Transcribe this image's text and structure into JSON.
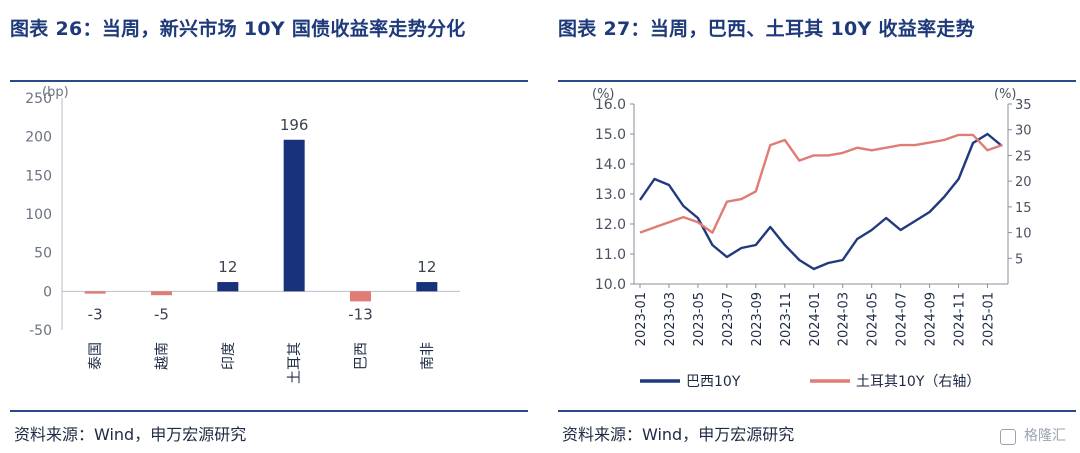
{
  "left": {
    "title": "图表 26：当周，新兴市场 10Y 国债收益率走势分化",
    "source": "资料来源：Wind，申万宏源研究"
  },
  "right": {
    "title": "图表 27：当周，巴西、土耳其 10Y 收益率走势",
    "source": "资料来源：Wind，申万宏源研究"
  },
  "watermark": "格隆汇",
  "chart_data": [
    {
      "type": "bar",
      "ylabel": "(bp)",
      "ylim": [
        -50,
        250
      ],
      "yticks": [
        -50,
        0,
        50,
        100,
        150,
        200,
        250
      ],
      "categories": [
        "泰国",
        "越南",
        "印度",
        "土耳其",
        "巴西",
        "南非"
      ],
      "values": [
        -3,
        -5,
        12,
        196,
        -13,
        12
      ],
      "data_labels": [
        "-3",
        "-5",
        "12",
        "196",
        "-13",
        "12"
      ],
      "colors": {
        "positive": "#17317a",
        "negative": "#e07b75"
      },
      "grid": false
    },
    {
      "type": "line",
      "ylabel_left": "(%)",
      "ylabel_right": "(%)",
      "ylim_left": [
        10.0,
        16.0
      ],
      "yticks_left": [
        "10.0",
        "11.0",
        "12.0",
        "13.0",
        "14.0",
        "15.0",
        "16.0"
      ],
      "ylim_right": [
        0,
        35
      ],
      "yticks_right": [
        "5",
        "10",
        "15",
        "20",
        "25",
        "30",
        "35"
      ],
      "x_ticks": [
        "2023-01",
        "2023-03",
        "2023-05",
        "2023-07",
        "2023-09",
        "2023-11",
        "2024-01",
        "2024-03",
        "2024-05",
        "2024-07",
        "2024-09",
        "2024-11",
        "2025-01"
      ],
      "series": [
        {
          "name": "巴西10Y",
          "axis": "left",
          "color": "#1f3a7d",
          "x": [
            "2023-01",
            "2023-02",
            "2023-03",
            "2023-04",
            "2023-05",
            "2023-06",
            "2023-07",
            "2023-08",
            "2023-09",
            "2023-10",
            "2023-11",
            "2023-12",
            "2024-01",
            "2024-02",
            "2024-03",
            "2024-04",
            "2024-05",
            "2024-06",
            "2024-07",
            "2024-08",
            "2024-09",
            "2024-10",
            "2024-11",
            "2024-12",
            "2025-01",
            "2025-02"
          ],
          "values": [
            12.8,
            13.5,
            13.3,
            12.6,
            12.2,
            11.3,
            10.9,
            11.2,
            11.3,
            11.9,
            11.3,
            10.8,
            10.5,
            10.7,
            10.8,
            11.5,
            11.8,
            12.2,
            11.8,
            12.1,
            12.4,
            12.9,
            13.5,
            14.7,
            15.0,
            14.6
          ]
        },
        {
          "name": "土耳其10Y（右轴）",
          "axis": "right",
          "color": "#e07b75",
          "x": [
            "2023-01",
            "2023-02",
            "2023-03",
            "2023-04",
            "2023-05",
            "2023-06",
            "2023-07",
            "2023-08",
            "2023-09",
            "2023-10",
            "2023-11",
            "2023-12",
            "2024-01",
            "2024-02",
            "2024-03",
            "2024-04",
            "2024-05",
            "2024-06",
            "2024-07",
            "2024-08",
            "2024-09",
            "2024-10",
            "2024-11",
            "2024-12",
            "2025-01",
            "2025-02"
          ],
          "values": [
            10,
            11,
            12,
            13,
            12,
            10,
            16,
            16.5,
            18,
            27,
            28,
            24,
            25,
            25,
            25.5,
            26.5,
            26,
            26.5,
            27,
            27,
            27.5,
            28,
            29,
            29,
            26,
            27
          ]
        }
      ],
      "legend": [
        "巴西10Y",
        "土耳其10Y（右轴）"
      ],
      "legend_position": "bottom"
    }
  ]
}
